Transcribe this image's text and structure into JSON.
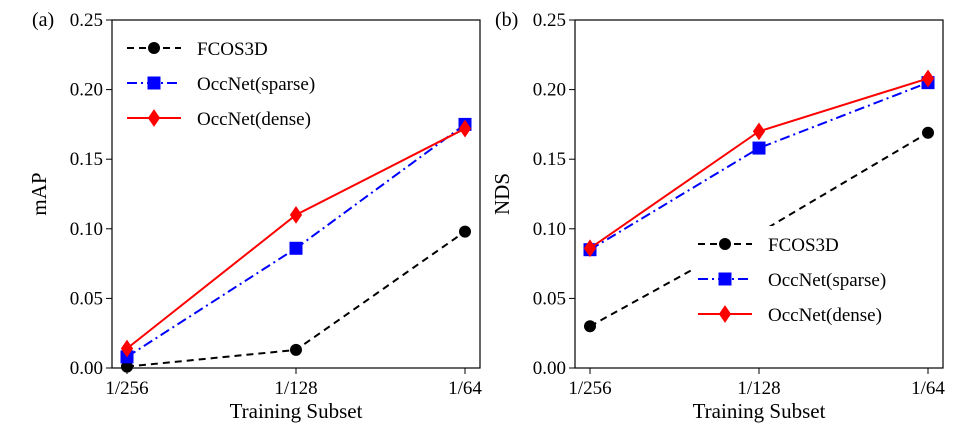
{
  "chart_data": [
    {
      "type": "line",
      "panel_label": "(a)",
      "title": "",
      "xlabel": "Training Subset",
      "ylabel": "mAP",
      "categories": [
        "1/256",
        "1/128",
        "1/64"
      ],
      "ylim": [
        0.0,
        0.25
      ],
      "yticks": [
        "0.00",
        "0.05",
        "0.10",
        "0.15",
        "0.20",
        "0.25"
      ],
      "ytick_values": [
        0.0,
        0.05,
        0.1,
        0.15,
        0.2,
        0.25
      ],
      "legend_position": "upper-left",
      "series": [
        {
          "name": "FCOS3D",
          "values": [
            0.001,
            0.013,
            0.098
          ],
          "color": "#000000",
          "dash": "dashed",
          "marker": "circle"
        },
        {
          "name": "OccNet(sparse)",
          "values": [
            0.008,
            0.086,
            0.175
          ],
          "color": "#0000ff",
          "dash": "dashdot",
          "marker": "square"
        },
        {
          "name": "OccNet(dense)",
          "values": [
            0.014,
            0.11,
            0.172
          ],
          "color": "#ff0000",
          "dash": "solid",
          "marker": "diamond"
        }
      ]
    },
    {
      "type": "line",
      "panel_label": "(b)",
      "title": "",
      "xlabel": "Training Subset",
      "ylabel": "NDS",
      "categories": [
        "1/256",
        "1/128",
        "1/64"
      ],
      "ylim": [
        0.0,
        0.25
      ],
      "yticks": [
        "0.00",
        "0.05",
        "0.10",
        "0.15",
        "0.20",
        "0.25"
      ],
      "ytick_values": [
        0.0,
        0.05,
        0.1,
        0.15,
        0.2,
        0.25
      ],
      "legend_position": "lower-right",
      "series": [
        {
          "name": "FCOS3D",
          "values": [
            0.03,
            0.097,
            0.169
          ],
          "color": "#000000",
          "dash": "dashed",
          "marker": "circle"
        },
        {
          "name": "OccNet(sparse)",
          "values": [
            0.085,
            0.158,
            0.205
          ],
          "color": "#0000ff",
          "dash": "dashdot",
          "marker": "square"
        },
        {
          "name": "OccNet(dense)",
          "values": [
            0.086,
            0.17,
            0.208
          ],
          "color": "#ff0000",
          "dash": "solid",
          "marker": "diamond"
        }
      ]
    }
  ]
}
